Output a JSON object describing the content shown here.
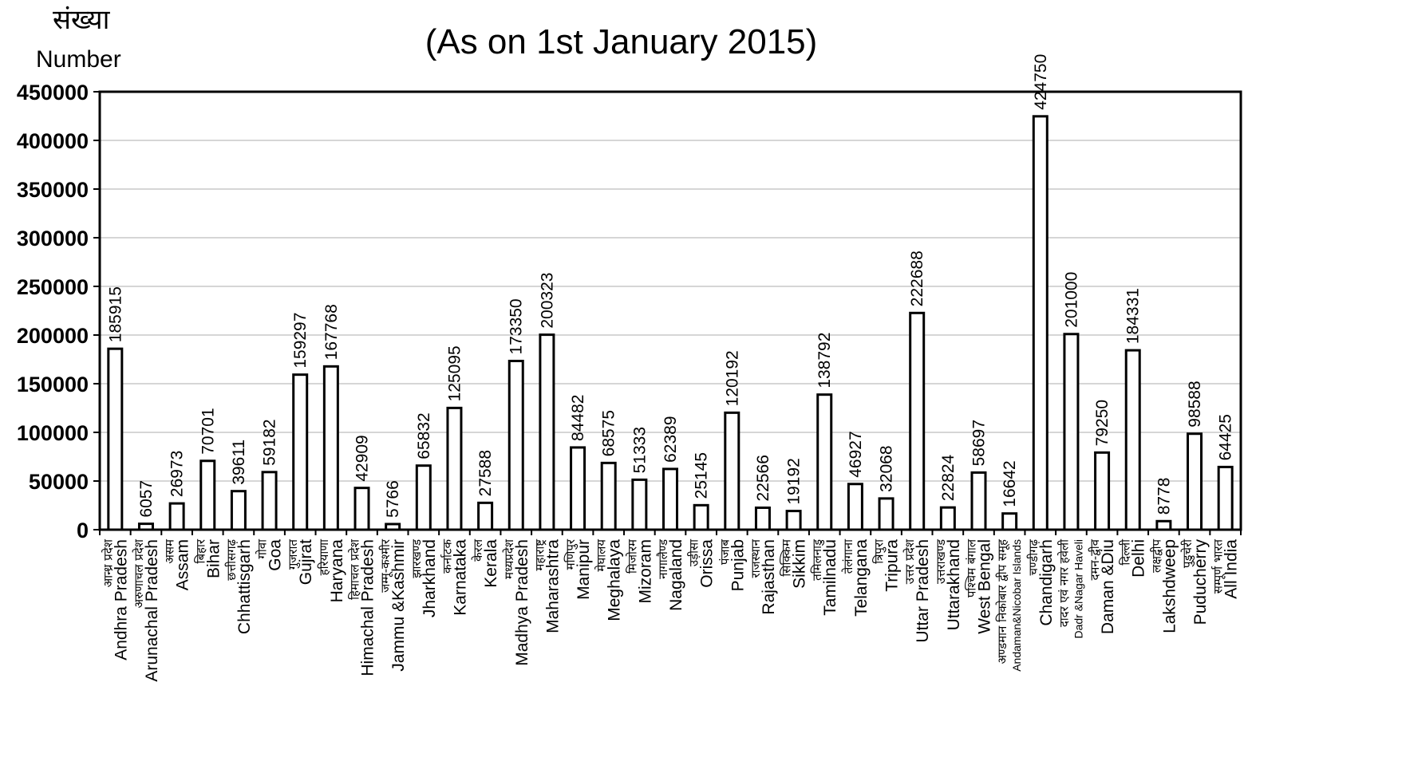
{
  "subtitle": "(As on 1st January 2015)",
  "y_axis": {
    "label_hindi": "संख्या",
    "label_english": "Number"
  },
  "chart_data": {
    "type": "bar",
    "title": "",
    "subtitle": "(As on 1st January 2015)",
    "ylabel": "संख्या Number",
    "ylim": [
      0,
      450000
    ],
    "yticks": [
      0,
      50000,
      100000,
      150000,
      200000,
      250000,
      300000,
      350000,
      400000,
      450000
    ],
    "grid": true,
    "categories": [
      {
        "hindi": "आन्ध्र प्रदेश",
        "english": "Andhra Pradesh"
      },
      {
        "hindi": "अरुणाचल प्रदेश",
        "english": "Arunachal Pradesh"
      },
      {
        "hindi": "असम",
        "english": "Assam"
      },
      {
        "hindi": "बिहार",
        "english": "Bihar"
      },
      {
        "hindi": "छत्तीसगढ़",
        "english": "Chhattisgarh"
      },
      {
        "hindi": "गोवा",
        "english": "Goa"
      },
      {
        "hindi": "गुजरात",
        "english": "Gujrat"
      },
      {
        "hindi": "हरियाणा",
        "english": "Haryana"
      },
      {
        "hindi": "हिमाचल प्रदेश",
        "english": "Himachal Pradesh"
      },
      {
        "hindi": "जम्मू-कश्मीर",
        "english": "Jammu &Kashmir"
      },
      {
        "hindi": "झारखण्ड",
        "english": "Jharkhand"
      },
      {
        "hindi": "कर्नाटक",
        "english": "Karnataka"
      },
      {
        "hindi": "केरल",
        "english": "Kerala"
      },
      {
        "hindi": "मध्यप्रदेश",
        "english": "Madhya Pradesh"
      },
      {
        "hindi": "महाराष्ट्र",
        "english": "Maharashtra"
      },
      {
        "hindi": "मणिपुर",
        "english": "Manipur"
      },
      {
        "hindi": "मेघालय",
        "english": "Meghalaya"
      },
      {
        "hindi": "मिजोरम",
        "english": "Mizoram"
      },
      {
        "hindi": "नागालैण्ड",
        "english": "Nagaland"
      },
      {
        "hindi": "उड़ीसा",
        "english": "Orissa"
      },
      {
        "hindi": "पंजाब",
        "english": "Punjab"
      },
      {
        "hindi": "राजस्थान",
        "english": "Rajasthan"
      },
      {
        "hindi": "सिक्किम",
        "english": "Sikkim"
      },
      {
        "hindi": "तमिलनाडु",
        "english": "Tamilnadu"
      },
      {
        "hindi": "तेलंगाना",
        "english": "Telangana"
      },
      {
        "hindi": "त्रिपुरा",
        "english": "Tripura"
      },
      {
        "hindi": "उत्तर प्रदेश",
        "english": "Uttar Pradesh"
      },
      {
        "hindi": "उत्तराखण्ड",
        "english": "Uttarakhand"
      },
      {
        "hindi": "पश्चिम बंगाल",
        "english": "West Bengal"
      },
      {
        "hindi": "अण्डमान निकोबार द्वीप समूह",
        "english": "Andaman&Nicobar Islands",
        "small": true
      },
      {
        "hindi": "चण्डीगढ़",
        "english": "Chandigarh"
      },
      {
        "hindi": "दादर एवं नगर हवेली",
        "english": "Dadr &Nagar Haveli",
        "small": true
      },
      {
        "hindi": "दमन-द्वीव",
        "english": "Daman &Diu"
      },
      {
        "hindi": "दिल्ली",
        "english": "Delhi"
      },
      {
        "hindi": "लक्षद्वीप",
        "english": "Lakshdweep"
      },
      {
        "hindi": "पुडुचेरी",
        "english": "Puducherry"
      },
      {
        "hindi": "सम्पूर्ण भारत",
        "english": "All India"
      }
    ],
    "values": [
      185915,
      6057,
      26973,
      70701,
      39611,
      59182,
      159297,
      167768,
      42909,
      5766,
      65832,
      125095,
      27588,
      173350,
      200323,
      84482,
      68575,
      51333,
      62389,
      25145,
      120192,
      22566,
      19192,
      138792,
      46927,
      32068,
      222688,
      22824,
      58697,
      16642,
      424750,
      201000,
      79250,
      184331,
      8778,
      98588,
      64425
    ],
    "value_labels": [
      "185915",
      "6057",
      "26973",
      "70701",
      "39611",
      "59182",
      "159297",
      "167768",
      "42909",
      "5766",
      "65832",
      "125095",
      "27588",
      "173350",
      "200323",
      "84482",
      "68575",
      "51333",
      "62389",
      "25145",
      "120192",
      "22566",
      "19192",
      "138792",
      "46927",
      "32068",
      "222688",
      "22824",
      "58697",
      "16642",
      "424750",
      "201000",
      "79250",
      "184331",
      "8778",
      "98588",
      "64425"
    ],
    "tick_labels": [
      "0",
      "50000",
      "100000",
      "150000",
      "200000",
      "250000",
      "300000",
      "350000",
      "400000",
      "450000"
    ],
    "colors": {
      "bar_fill": "#ffffff",
      "bar_stroke": "#000000",
      "grid": "#c8c8c8"
    }
  }
}
